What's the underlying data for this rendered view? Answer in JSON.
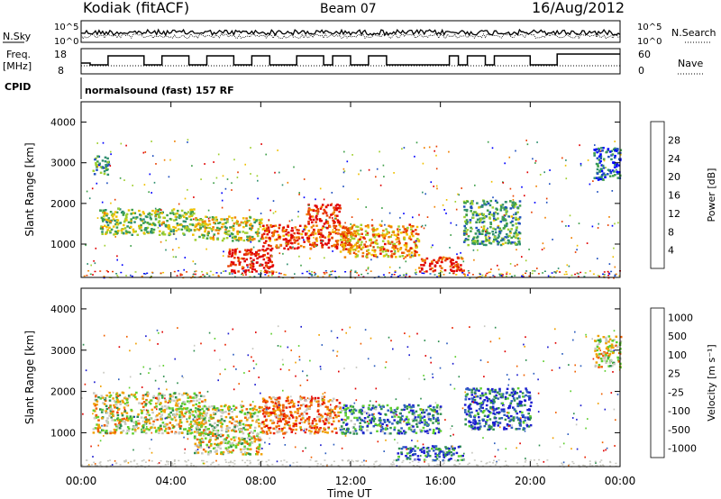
{
  "header": {
    "title": "Kodiak (fitACF)",
    "beam": "Beam 07",
    "date": "16/Aug/2012"
  },
  "strips": {
    "nsky": {
      "label": "N.Sky",
      "ticks": [
        "10^5",
        "10^0"
      ]
    },
    "nsearch": {
      "label": "N.Search",
      "ticks": [
        "10^5",
        "10^0"
      ]
    },
    "freq": {
      "label_line1": "Freq.",
      "label_line2": "[MHz]",
      "ticks": [
        "18",
        "8"
      ]
    },
    "nave": {
      "label": "Nave",
      "ticks": [
        "60",
        "0"
      ]
    },
    "cpid": {
      "label": "CPID",
      "value": "normalsound (fast) 157 RF"
    }
  },
  "xaxis": {
    "label": "Time UT",
    "ticks": [
      "00:00",
      "04:00",
      "08:00",
      "12:00",
      "16:00",
      "20:00",
      "00:00"
    ]
  },
  "chart_data": [
    {
      "type": "heatmap",
      "title": "",
      "xlabel": "Time UT",
      "ylabel": "Slant Range [km]",
      "x_ticks": [
        "00:00",
        "04:00",
        "08:00",
        "12:00",
        "16:00",
        "20:00",
        "00:00"
      ],
      "xlim_hours": [
        0,
        24
      ],
      "ylim": [
        180,
        4500
      ],
      "y_ticks": [
        1000,
        2000,
        3000,
        4000
      ],
      "colorbar": {
        "label": "Power [dB]",
        "ticks": [
          "4",
          "8",
          "12",
          "16",
          "20",
          "24",
          "28"
        ],
        "range": [
          0,
          30
        ],
        "colors": [
          "#0000ff",
          "#1f4fbf",
          "#2f8f6f",
          "#3fa04a",
          "#9fcf2f",
          "#f0c000",
          "#f08000",
          "#e84000",
          "#e00000"
        ]
      },
      "bands": [
        {
          "t0": 0.8,
          "t1": 5.0,
          "r0": 1250,
          "r1": 1900,
          "level": 0.45
        },
        {
          "t0": 5.0,
          "t1": 8.0,
          "r0": 1100,
          "r1": 1700,
          "level": 0.55
        },
        {
          "t0": 6.5,
          "t1": 8.5,
          "r0": 300,
          "r1": 900,
          "level": 0.95
        },
        {
          "t0": 8.0,
          "t1": 12.0,
          "r0": 900,
          "r1": 1500,
          "level": 0.85
        },
        {
          "t0": 10.0,
          "t1": 11.5,
          "r0": 1500,
          "r1": 2000,
          "level": 0.9
        },
        {
          "t0": 11.5,
          "t1": 15.0,
          "r0": 700,
          "r1": 1500,
          "level": 0.7
        },
        {
          "t0": 15.0,
          "t1": 17.0,
          "r0": 350,
          "r1": 700,
          "level": 0.92
        },
        {
          "t0": 17.0,
          "t1": 19.5,
          "r0": 1000,
          "r1": 2100,
          "level": 0.35
        },
        {
          "t0": 0.5,
          "t1": 1.2,
          "r0": 2700,
          "r1": 3200,
          "level": 0.3
        },
        {
          "t0": 22.8,
          "t1": 24.0,
          "r0": 2600,
          "r1": 3400,
          "level": 0.2
        }
      ]
    },
    {
      "type": "heatmap",
      "title": "",
      "xlabel": "Time UT",
      "ylabel": "Slant Range [km]",
      "x_ticks": [
        "00:00",
        "04:00",
        "08:00",
        "12:00",
        "16:00",
        "20:00",
        "00:00"
      ],
      "xlim_hours": [
        0,
        24
      ],
      "ylim": [
        180,
        4500
      ],
      "y_ticks": [
        1000,
        2000,
        3000,
        4000
      ],
      "colorbar": {
        "label": "Velocity [m s^-1]",
        "ticks": [
          "1000",
          "500",
          "100",
          "25",
          "-25",
          "-100",
          "-500",
          "-1000"
        ],
        "range": [
          -1000,
          1000
        ],
        "colors": [
          "#1c1cd0",
          "#2f5fbf",
          "#2f8f4f",
          "#5fcf2f",
          "#c8c8c0",
          "#f0a000",
          "#f06000",
          "#e82000",
          "#e00000"
        ]
      },
      "bands": [
        {
          "t0": 0.5,
          "t1": 5.5,
          "r0": 1000,
          "r1": 2000,
          "level": 0.5
        },
        {
          "t0": 5.0,
          "t1": 8.0,
          "r0": 500,
          "r1": 1700,
          "level": 0.5
        },
        {
          "t0": 8.0,
          "t1": 11.5,
          "r0": 1000,
          "r1": 1900,
          "level": 0.7
        },
        {
          "t0": 11.5,
          "t1": 16.0,
          "r0": 1000,
          "r1": 1700,
          "level": 0.25
        },
        {
          "t0": 14.0,
          "t1": 17.0,
          "r0": 350,
          "r1": 700,
          "level": 0.2
        },
        {
          "t0": 17.0,
          "t1": 20.0,
          "r0": 1100,
          "r1": 2100,
          "level": 0.15
        },
        {
          "t0": 22.8,
          "t1": 24.0,
          "r0": 2600,
          "r1": 3400,
          "level": 0.5
        }
      ]
    }
  ]
}
